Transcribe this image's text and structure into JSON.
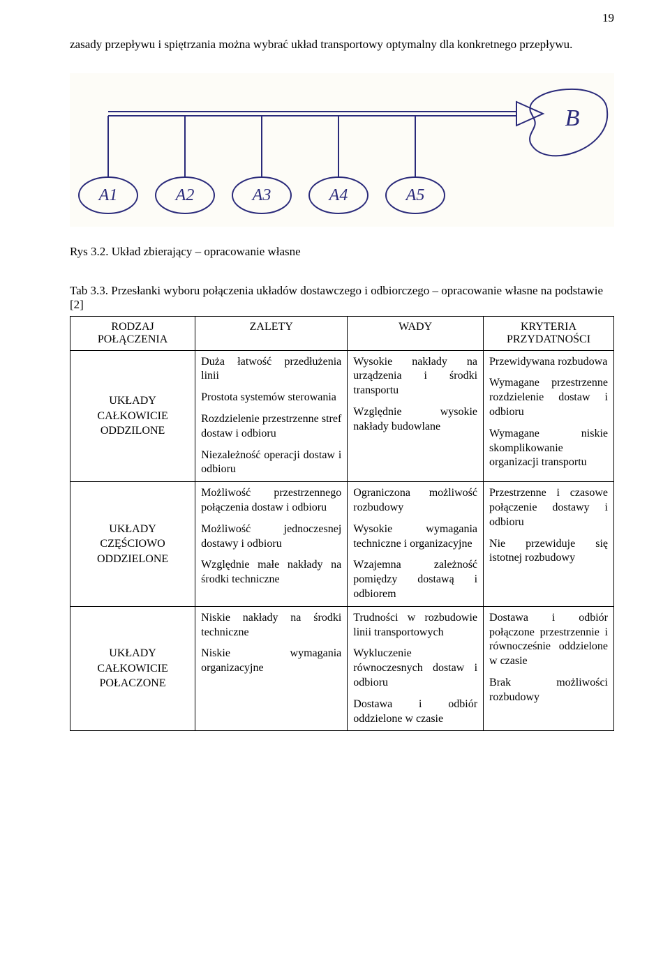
{
  "page_number": "19",
  "intro": "zasady przepływu i spiętrzania można wybrać układ transportowy optymalny dla konkretnego przepływu.",
  "figure": {
    "caption": "Rys 3.2. Układ zbierający – opracowanie własne",
    "nodes": [
      "A1",
      "A2",
      "A3",
      "A4",
      "A5"
    ],
    "target": "B",
    "line_color": "#2a2a7a",
    "line_width": 2,
    "text_color": "#2a2a7a",
    "background": "#fdfcf7"
  },
  "table": {
    "caption": "Tab 3.3. Przesłanki wyboru połączenia układów dostawczego i odbiorczego – opracowanie własne na podstawie [2]",
    "headers": {
      "rodzaj": "RODZAJ POŁĄCZENIA",
      "zalety": "ZALETY",
      "wady": "WADY",
      "kryteria": "KRYTERIA PRZYDATNOŚCI"
    },
    "rows": [
      {
        "label": "UKŁADY CAŁKOWICIE ODDZILONE",
        "zalety": [
          "Duża łatwość przedłużenia linii",
          "Prostota systemów sterowania",
          "Rozdzielenie przestrzenne stref dostaw i odbioru",
          "Niezależność operacji dostaw i odbioru"
        ],
        "wady": [
          "Wysokie nakłady na urządzenia i środki transportu",
          "Względnie wysokie nakłady budowlane"
        ],
        "kryteria": [
          "Przewidywana rozbudowa",
          "Wymagane przestrzenne rozdzielenie dostaw i odbioru",
          "Wymagane niskie skomplikowanie organizacji transportu"
        ]
      },
      {
        "label": "UKŁADY CZĘŚCIOWO ODDZIELONE",
        "zalety": [
          "Możliwość przestrzennego połączenia dostaw i odbioru",
          "Możliwość jednoczesnej dostawy i odbioru",
          "Względnie małe nakłady na środki techniczne"
        ],
        "wady": [
          "Ograniczona możliwość rozbudowy",
          "Wysokie wymagania techniczne i organizacyjne",
          "Wzajemna zależność pomiędzy dostawą i odbiorem"
        ],
        "kryteria": [
          "Przestrzenne i czasowe połączenie dostawy i odbioru",
          "Nie przewiduje się istotnej rozbudowy"
        ]
      },
      {
        "label": "UKŁADY CAŁKOWICIE POŁACZONE",
        "zalety": [
          "Niskie nakłady na środki techniczne",
          "Niskie wymagania organizacyjne"
        ],
        "wady": [
          "Trudności w rozbudowie linii transportowych",
          "Wykluczenie równoczesnych dostaw i odbioru",
          "Dostawa i odbiór oddzielone w czasie"
        ],
        "kryteria": [
          "Dostawa i odbiór połączone przestrzennie i równocześnie oddzielone w czasie",
          "Brak możliwości rozbudowy"
        ]
      }
    ]
  }
}
